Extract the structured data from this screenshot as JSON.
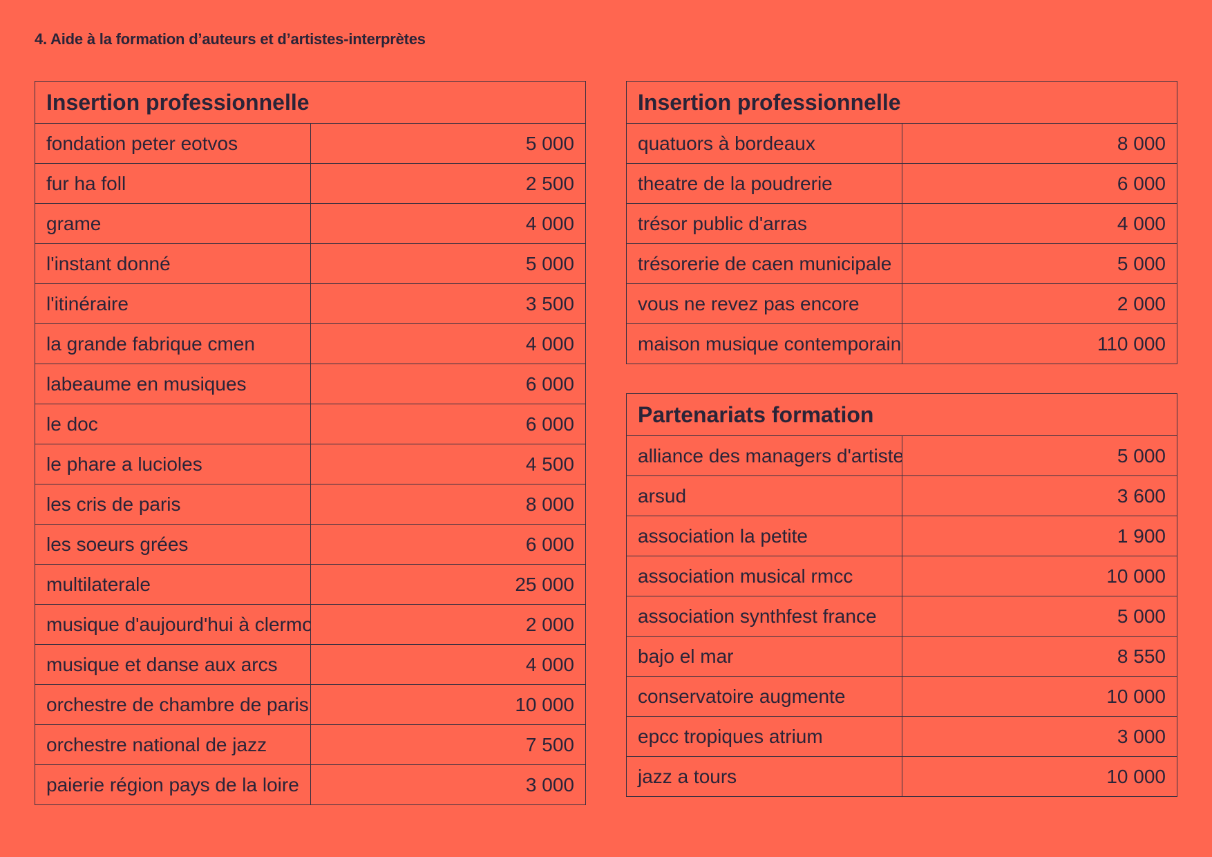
{
  "heading": "4. Aide à la formation d’auteurs et d’artistes-interprètes",
  "tables": [
    {
      "title": "Insertion professionnelle",
      "rows": [
        {
          "name": "fondation peter eotvos",
          "amount": "5 000"
        },
        {
          "name": "fur ha foll",
          "amount": "2 500"
        },
        {
          "name": "grame",
          "amount": "4 000"
        },
        {
          "name": "l'instant donné",
          "amount": "5 000"
        },
        {
          "name": "l'itinéraire",
          "amount": "3 500"
        },
        {
          "name": "la grande fabrique cmen",
          "amount": "4 000"
        },
        {
          "name": "labeaume en musiques",
          "amount": "6 000"
        },
        {
          "name": "le doc",
          "amount": "6 000"
        },
        {
          "name": "le phare a lucioles",
          "amount": "4 500"
        },
        {
          "name": "les cris de paris",
          "amount": "8 000"
        },
        {
          "name": "les soeurs grées",
          "amount": "6 000"
        },
        {
          "name": "multilaterale",
          "amount": "25 000"
        },
        {
          "name": "musique d'aujourd'hui à clermo",
          "amount": "2 000"
        },
        {
          "name": "musique et danse aux arcs",
          "amount": "4 000"
        },
        {
          "name": "orchestre de chambre de paris",
          "amount": "10 000"
        },
        {
          "name": "orchestre national de jazz",
          "amount": "7 500"
        },
        {
          "name": "paierie région pays de la loire",
          "amount": "3 000"
        }
      ]
    },
    {
      "title": "Insertion professionnelle",
      "rows": [
        {
          "name": "quatuors à bordeaux",
          "amount": "8 000"
        },
        {
          "name": "theatre de la poudrerie",
          "amount": "6 000"
        },
        {
          "name": "trésor public d'arras",
          "amount": "4 000"
        },
        {
          "name": "trésorerie de caen municipale",
          "amount": "5 000"
        },
        {
          "name": "vous ne revez pas encore",
          "amount": "2 000"
        },
        {
          "name": "maison musique contemporaine",
          "amount": "110 000"
        }
      ]
    },
    {
      "title": "Partenariats formation",
      "rows": [
        {
          "name": "alliance des managers d'artiste",
          "amount": "5 000"
        },
        {
          "name": "arsud",
          "amount": "3 600"
        },
        {
          "name": "association la petite",
          "amount": "1 900"
        },
        {
          "name": "association musical rmcc",
          "amount": "10 000"
        },
        {
          "name": "association synthfest france",
          "amount": "5 000"
        },
        {
          "name": "bajo el mar",
          "amount": "8 550"
        },
        {
          "name": "conservatoire augmente",
          "amount": "10 000"
        },
        {
          "name": "epcc tropiques atrium",
          "amount": "3 000"
        },
        {
          "name": "jazz a tours",
          "amount": "10 000"
        }
      ]
    }
  ]
}
